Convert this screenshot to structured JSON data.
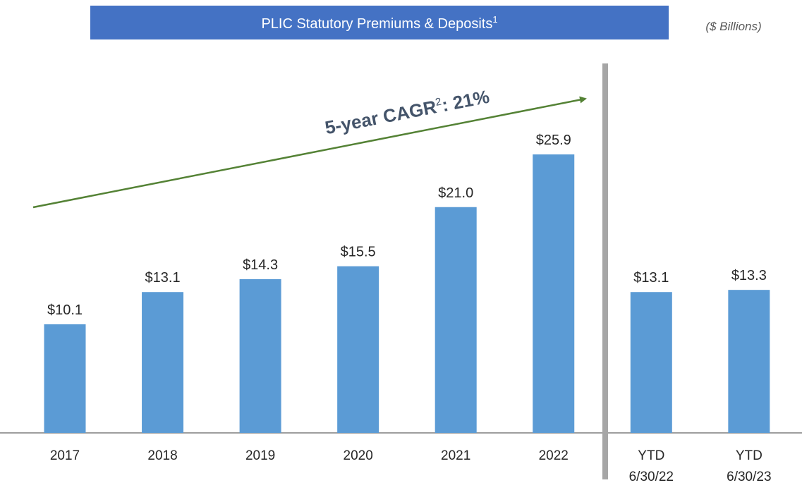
{
  "chart_data": {
    "type": "bar",
    "title": "PLIC Statutory Premiums & Deposits",
    "title_superscript": "1",
    "subtitle": "($ Billions)",
    "annotation": {
      "text": "5-year CAGR",
      "superscript": "2",
      "suffix": ": 21%"
    },
    "categories": [
      "2017",
      "2018",
      "2019",
      "2020",
      "2021",
      "2022",
      "YTD\n6/30/22",
      "YTD\n6/30/23"
    ],
    "values": [
      10.1,
      13.1,
      14.3,
      15.5,
      21.0,
      25.9,
      13.1,
      13.3
    ],
    "value_labels": [
      "$10.1",
      "$13.1",
      "$14.3",
      "$15.5",
      "$21.0",
      "$25.9",
      "$13.1",
      "$13.3"
    ],
    "color": "#5b9bd5"
  }
}
